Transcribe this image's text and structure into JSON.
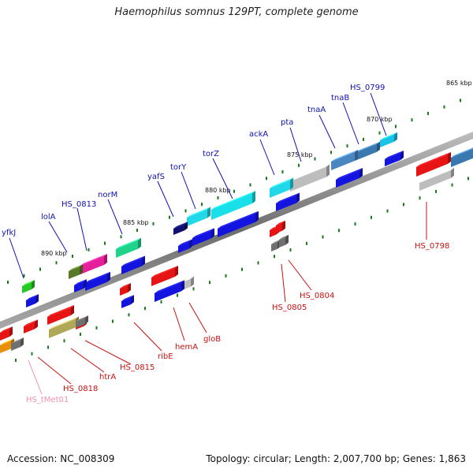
{
  "title": "Haemophilus somnus 129PT, complete genome",
  "accession": "Accession: NC_008309",
  "summary": "Topology: circular; Length: 2,007,700 bp; Genes: 1,863",
  "scale_labels": [
    "865 kbp",
    "870 kbp",
    "875 kbp",
    "880 kbp",
    "885 kbp",
    "890 kbp"
  ],
  "gene_labels_top": [
    "HS_0799",
    "tnaB",
    "tnaA",
    "pta",
    "ackA",
    "torZ",
    "torY",
    "yafS",
    "norM",
    "HS_0813",
    "lolA",
    "yfkJ"
  ],
  "gene_labels_bottom": [
    "HS_0798",
    "HS_0804",
    "HS_0805",
    "gloB",
    "hemA",
    "ribE",
    "HS_0815",
    "htrA",
    "HS_0818",
    "HS_tMet01"
  ],
  "colors": {
    "forward_label": "#1010b0",
    "reverse_label": "#c81010",
    "trna_label": "#f090b0",
    "backbone": "#808080",
    "tick": "#1a7a1a"
  }
}
